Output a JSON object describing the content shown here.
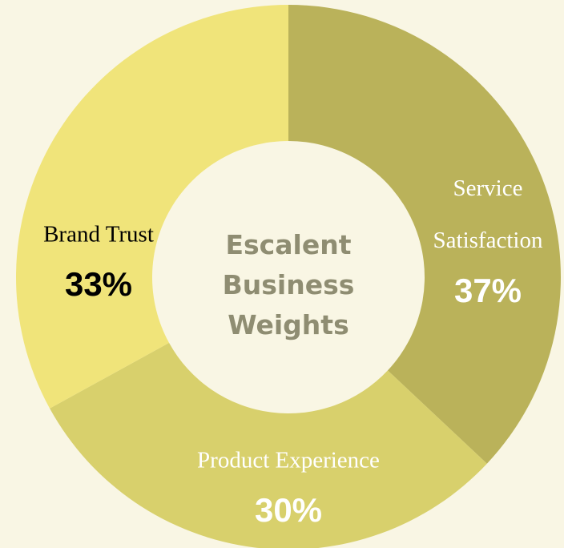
{
  "chart_data": {
    "type": "donut",
    "title": "Escalent Business Weights",
    "categories": [
      "Service Satisfaction",
      "Product Experience",
      "Brand Trust"
    ],
    "values": [
      37,
      30,
      33
    ],
    "value_labels": [
      "37%",
      "30%",
      "33%"
    ],
    "colors": [
      "#bab25a",
      "#d8d06c",
      "#f0e47a"
    ],
    "label_colors": [
      "#ffffff",
      "#ffffff",
      "#000000"
    ]
  }
}
